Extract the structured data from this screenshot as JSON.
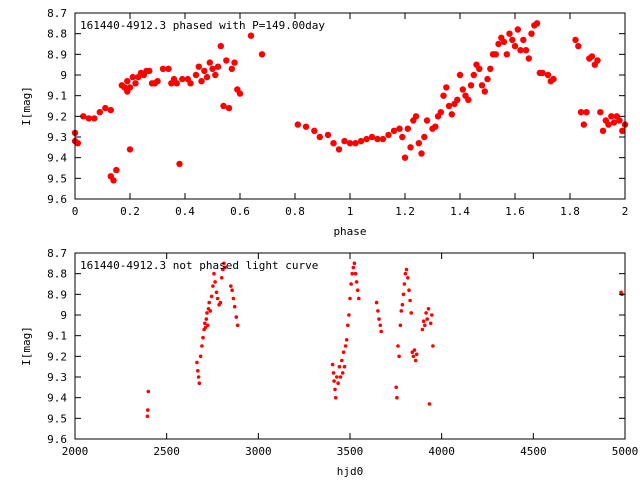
{
  "chart_data": [
    {
      "type": "scatter",
      "title": "161440-4912.3 phased with P=149.00day",
      "xlabel": "phase",
      "ylabel": "I[mag]",
      "xlim": [
        0,
        2
      ],
      "ylim": [
        8.7,
        9.6
      ],
      "y_inverted": true,
      "grid": false,
      "marker_color": "#ff0000",
      "marker": "filled-circle-large",
      "x_ticks": [
        "0",
        "0.2",
        "0.4",
        "0.6",
        "0.8",
        "1",
        "1.2",
        "1.4",
        "1.6",
        "1.8",
        "2"
      ],
      "y_ticks": [
        "8.7",
        "8.8",
        "8.9",
        "9",
        "9.1",
        "9.2",
        "9.3",
        "9.4",
        "9.5",
        "9.6"
      ],
      "points": [
        [
          0.0,
          9.28
        ],
        [
          0.0,
          9.32
        ],
        [
          0.01,
          9.33
        ],
        [
          0.03,
          9.2
        ],
        [
          0.05,
          9.21
        ],
        [
          0.07,
          9.21
        ],
        [
          0.09,
          9.18
        ],
        [
          0.11,
          9.16
        ],
        [
          0.13,
          9.17
        ],
        [
          0.13,
          9.49
        ],
        [
          0.14,
          9.51
        ],
        [
          0.15,
          9.46
        ],
        [
          0.17,
          9.05
        ],
        [
          0.18,
          9.06
        ],
        [
          0.19,
          9.03
        ],
        [
          0.19,
          9.08
        ],
        [
          0.2,
          9.06
        ],
        [
          0.2,
          9.36
        ],
        [
          0.21,
          9.01
        ],
        [
          0.22,
          9.04
        ],
        [
          0.23,
          9.01
        ],
        [
          0.24,
          8.99
        ],
        [
          0.25,
          9.0
        ],
        [
          0.26,
          8.98
        ],
        [
          0.27,
          8.98
        ],
        [
          0.28,
          9.04
        ],
        [
          0.29,
          9.04
        ],
        [
          0.3,
          9.03
        ],
        [
          0.32,
          8.97
        ],
        [
          0.34,
          8.97
        ],
        [
          0.35,
          9.04
        ],
        [
          0.36,
          9.02
        ],
        [
          0.37,
          9.04
        ],
        [
          0.38,
          9.43
        ],
        [
          0.39,
          9.02
        ],
        [
          0.41,
          9.02
        ],
        [
          0.42,
          9.04
        ],
        [
          0.44,
          9.0
        ],
        [
          0.45,
          8.96
        ],
        [
          0.46,
          9.03
        ],
        [
          0.47,
          8.98
        ],
        [
          0.48,
          9.01
        ],
        [
          0.49,
          8.94
        ],
        [
          0.5,
          8.97
        ],
        [
          0.51,
          9.0
        ],
        [
          0.52,
          8.96
        ],
        [
          0.53,
          8.86
        ],
        [
          0.54,
          9.15
        ],
        [
          0.55,
          8.93
        ],
        [
          0.56,
          9.16
        ],
        [
          0.57,
          8.97
        ],
        [
          0.58,
          8.94
        ],
        [
          0.59,
          9.07
        ],
        [
          0.6,
          9.09
        ],
        [
          0.64,
          8.81
        ],
        [
          0.68,
          8.9
        ],
        [
          0.81,
          9.24
        ],
        [
          0.84,
          9.25
        ],
        [
          0.87,
          9.27
        ],
        [
          0.89,
          9.3
        ],
        [
          0.92,
          9.29
        ],
        [
          0.94,
          9.33
        ],
        [
          0.96,
          9.36
        ],
        [
          0.98,
          9.32
        ],
        [
          1.0,
          9.33
        ],
        [
          1.02,
          9.33
        ],
        [
          1.04,
          9.32
        ],
        [
          1.06,
          9.31
        ],
        [
          1.08,
          9.3
        ],
        [
          1.1,
          9.31
        ],
        [
          1.12,
          9.31
        ],
        [
          1.14,
          9.29
        ],
        [
          1.16,
          9.27
        ],
        [
          1.18,
          9.26
        ],
        [
          1.19,
          9.3
        ],
        [
          1.2,
          9.4
        ],
        [
          1.21,
          9.26
        ],
        [
          1.22,
          9.35
        ],
        [
          1.23,
          9.22
        ],
        [
          1.24,
          9.2
        ],
        [
          1.25,
          9.33
        ],
        [
          1.26,
          9.38
        ],
        [
          1.27,
          9.3
        ],
        [
          1.28,
          9.22
        ],
        [
          1.3,
          9.26
        ],
        [
          1.31,
          9.25
        ],
        [
          1.32,
          9.2
        ],
        [
          1.33,
          9.18
        ],
        [
          1.34,
          9.1
        ],
        [
          1.35,
          9.06
        ],
        [
          1.36,
          9.15
        ],
        [
          1.37,
          9.19
        ],
        [
          1.38,
          9.14
        ],
        [
          1.39,
          9.12
        ],
        [
          1.4,
          9.0
        ],
        [
          1.41,
          9.07
        ],
        [
          1.42,
          9.1
        ],
        [
          1.43,
          9.12
        ],
        [
          1.44,
          9.05
        ],
        [
          1.45,
          9.0
        ],
        [
          1.46,
          8.95
        ],
        [
          1.47,
          8.97
        ],
        [
          1.48,
          9.05
        ],
        [
          1.49,
          9.08
        ],
        [
          1.5,
          9.02
        ],
        [
          1.51,
          8.97
        ],
        [
          1.52,
          8.9
        ],
        [
          1.53,
          8.9
        ],
        [
          1.54,
          8.85
        ],
        [
          1.55,
          8.82
        ],
        [
          1.56,
          8.84
        ],
        [
          1.57,
          8.9
        ],
        [
          1.58,
          8.8
        ],
        [
          1.59,
          8.83
        ],
        [
          1.6,
          8.86
        ],
        [
          1.61,
          8.78
        ],
        [
          1.62,
          8.88
        ],
        [
          1.63,
          8.83
        ],
        [
          1.64,
          8.88
        ],
        [
          1.65,
          8.92
        ],
        [
          1.66,
          8.8
        ],
        [
          1.67,
          8.76
        ],
        [
          1.68,
          8.75
        ],
        [
          1.69,
          8.99
        ],
        [
          1.7,
          8.99
        ],
        [
          1.72,
          9.0
        ],
        [
          1.73,
          9.03
        ],
        [
          1.74,
          9.02
        ],
        [
          1.82,
          8.83
        ],
        [
          1.83,
          8.86
        ],
        [
          1.84,
          9.18
        ],
        [
          1.85,
          9.24
        ],
        [
          1.86,
          9.18
        ],
        [
          1.87,
          8.92
        ],
        [
          1.88,
          8.91
        ],
        [
          1.89,
          8.95
        ],
        [
          1.9,
          8.93
        ],
        [
          1.91,
          9.18
        ],
        [
          1.92,
          9.27
        ],
        [
          1.93,
          9.22
        ],
        [
          1.94,
          9.24
        ],
        [
          1.95,
          9.2
        ],
        [
          1.96,
          9.23
        ],
        [
          1.97,
          9.2
        ],
        [
          1.98,
          9.22
        ],
        [
          1.99,
          9.27
        ],
        [
          2.0,
          9.24
        ]
      ]
    },
    {
      "type": "scatter",
      "title": "161440-4912.3 not phased light curve",
      "xlabel": "hjd0",
      "ylabel": "I[mag]",
      "xlim": [
        2000,
        5000
      ],
      "ylim": [
        8.7,
        9.6
      ],
      "y_inverted": true,
      "grid": false,
      "marker_color": "#ff0000",
      "marker": "filled-circle-small",
      "x_ticks": [
        "2000",
        "2500",
        "3000",
        "3500",
        "4000",
        "4500",
        "5000"
      ],
      "y_ticks": [
        "8.7",
        "8.8",
        "8.9",
        "9",
        "9.1",
        "9.2",
        "9.3",
        "9.4",
        "9.5",
        "9.6"
      ],
      "points": [
        [
          2395,
          9.49
        ],
        [
          2397,
          9.46
        ],
        [
          2400,
          9.37
        ],
        [
          2665,
          9.23
        ],
        [
          2670,
          9.27
        ],
        [
          2674,
          9.3
        ],
        [
          2678,
          9.33
        ],
        [
          2685,
          9.2
        ],
        [
          2692,
          9.15
        ],
        [
          2698,
          9.11
        ],
        [
          2704,
          9.07
        ],
        [
          2708,
          9.04
        ],
        [
          2712,
          9.06
        ],
        [
          2716,
          9.02
        ],
        [
          2720,
          8.99
        ],
        [
          2724,
          9.05
        ],
        [
          2728,
          8.97
        ],
        [
          2732,
          8.94
        ],
        [
          2738,
          8.98
        ],
        [
          2745,
          8.91
        ],
        [
          2752,
          8.86
        ],
        [
          2758,
          8.8
        ],
        [
          2764,
          8.84
        ],
        [
          2772,
          8.89
        ],
        [
          2778,
          8.92
        ],
        [
          2786,
          8.95
        ],
        [
          2793,
          8.94
        ],
        [
          2800,
          8.82
        ],
        [
          2806,
          8.78
        ],
        [
          2812,
          8.75
        ],
        [
          2818,
          8.77
        ],
        [
          2850,
          8.86
        ],
        [
          2857,
          8.88
        ],
        [
          2864,
          8.92
        ],
        [
          2871,
          8.96
        ],
        [
          2880,
          9.01
        ],
        [
          2887,
          9.05
        ],
        [
          3405,
          9.24
        ],
        [
          3410,
          9.28
        ],
        [
          3413,
          9.32
        ],
        [
          3418,
          9.36
        ],
        [
          3422,
          9.4
        ],
        [
          3428,
          9.3
        ],
        [
          3435,
          9.33
        ],
        [
          3442,
          9.25
        ],
        [
          3448,
          9.3
        ],
        [
          3455,
          9.22
        ],
        [
          3460,
          9.28
        ],
        [
          3465,
          9.18
        ],
        [
          3470,
          9.25
        ],
        [
          3476,
          9.15
        ],
        [
          3482,
          9.12
        ],
        [
          3488,
          9.05
        ],
        [
          3494,
          9.0
        ],
        [
          3500,
          8.92
        ],
        [
          3506,
          8.85
        ],
        [
          3512,
          8.8
        ],
        [
          3518,
          8.77
        ],
        [
          3524,
          8.75
        ],
        [
          3530,
          8.8
        ],
        [
          3536,
          8.84
        ],
        [
          3542,
          8.88
        ],
        [
          3548,
          8.92
        ],
        [
          3645,
          8.94
        ],
        [
          3652,
          8.98
        ],
        [
          3658,
          9.02
        ],
        [
          3665,
          9.05
        ],
        [
          3670,
          9.08
        ],
        [
          3752,
          9.35
        ],
        [
          3756,
          9.4
        ],
        [
          3762,
          9.15
        ],
        [
          3768,
          9.2
        ],
        [
          3775,
          9.05
        ],
        [
          3780,
          8.98
        ],
        [
          3786,
          8.95
        ],
        [
          3792,
          8.9
        ],
        [
          3797,
          8.85
        ],
        [
          3802,
          8.8
        ],
        [
          3808,
          8.78
        ],
        [
          3815,
          8.82
        ],
        [
          3822,
          8.88
        ],
        [
          3828,
          8.93
        ],
        [
          3834,
          8.99
        ],
        [
          3840,
          9.18
        ],
        [
          3846,
          9.2
        ],
        [
          3852,
          9.17
        ],
        [
          3858,
          9.22
        ],
        [
          3864,
          9.19
        ],
        [
          3895,
          9.07
        ],
        [
          3902,
          9.03
        ],
        [
          3908,
          9.05
        ],
        [
          3915,
          8.99
        ],
        [
          3921,
          9.02
        ],
        [
          3928,
          8.97
        ],
        [
          3933,
          9.43
        ],
        [
          3940,
          9.04
        ],
        [
          3946,
          9.0
        ],
        [
          3952,
          9.15
        ],
        [
          4978,
          8.89
        ],
        [
          4983,
          8.9
        ]
      ]
    }
  ]
}
